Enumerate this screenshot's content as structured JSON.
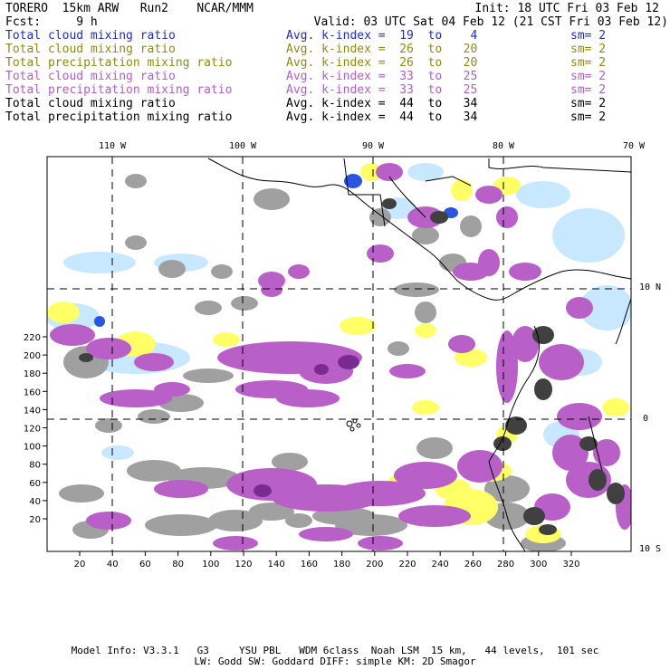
{
  "header": {
    "model": "TORERO  15km ARW   Run2    NCAR/MMM",
    "init": "Init: 18 UTC Fri 03 Feb 12",
    "fcst": "Fcst:     9 h",
    "valid": "Valid: 03 UTC Sat 04 Feb 12 (21 CST Fri 03 Feb 12)"
  },
  "legend": [
    {
      "field": "Total cloud mixing ratio",
      "kindex": "Avg. k-index =  19  to    4",
      "sm": "sm= 2",
      "color": "#1f2bd0"
    },
    {
      "field": "Total cloud mixing ratio",
      "kindex": "Avg. k-index =  26  to   20",
      "sm": "sm= 2",
      "color": "#8c8c10"
    },
    {
      "field": "Total precipitation mixing ratio",
      "kindex": "Avg. k-index =  26  to   20",
      "sm": "sm= 2",
      "color": "#8c8c10"
    },
    {
      "field": "Total cloud mixing ratio",
      "kindex": "Avg. k-index =  33  to   25",
      "sm": "sm= 2",
      "color": "#b060c8"
    },
    {
      "field": "Total precipitation mixing ratio",
      "kindex": "Avg. k-index =  33  to   25",
      "sm": "sm= 2",
      "color": "#b060c8"
    },
    {
      "field": "Total cloud mixing ratio",
      "kindex": "Avg. k-index =  44  to   34",
      "sm": "sm= 2",
      "color": "#000000"
    },
    {
      "field": "Total precipitation mixing ratio",
      "kindex": "Avg. k-index =  44  to   34",
      "sm": "sm= 2",
      "color": "#000000"
    }
  ],
  "map": {
    "lon_labels": [
      "110 W",
      "100 W",
      "90 W",
      "80 W",
      "70 W"
    ],
    "lat_labels": [
      "10 N",
      "0",
      "10 S"
    ],
    "x_ticks": [
      "20",
      "40",
      "60",
      "80",
      "100",
      "120",
      "140",
      "160",
      "180",
      "200",
      "220",
      "240",
      "260",
      "280",
      "300",
      "320"
    ],
    "y_ticks": [
      "20",
      "40",
      "60",
      "80",
      "100",
      "120",
      "140",
      "160",
      "180",
      "200",
      "220"
    ],
    "colors": {
      "blue_dark": "#2a55e0",
      "blue_light": "#c8e8ff",
      "yellow": "#ffff66",
      "purple": "#b85fc8",
      "purple_dark": "#7a2a90",
      "gray": "#a0a0a0",
      "gray_dark": "#404040"
    }
  },
  "footer": {
    "line1": "Model Info: V3.3.1   G3     YSU PBL   WDM 6class  Noah LSM  15 km,   44 levels,  101 sec",
    "line2": "LW: Godd SW: Goddard DIFF: simple KM: 2D Smagor"
  }
}
